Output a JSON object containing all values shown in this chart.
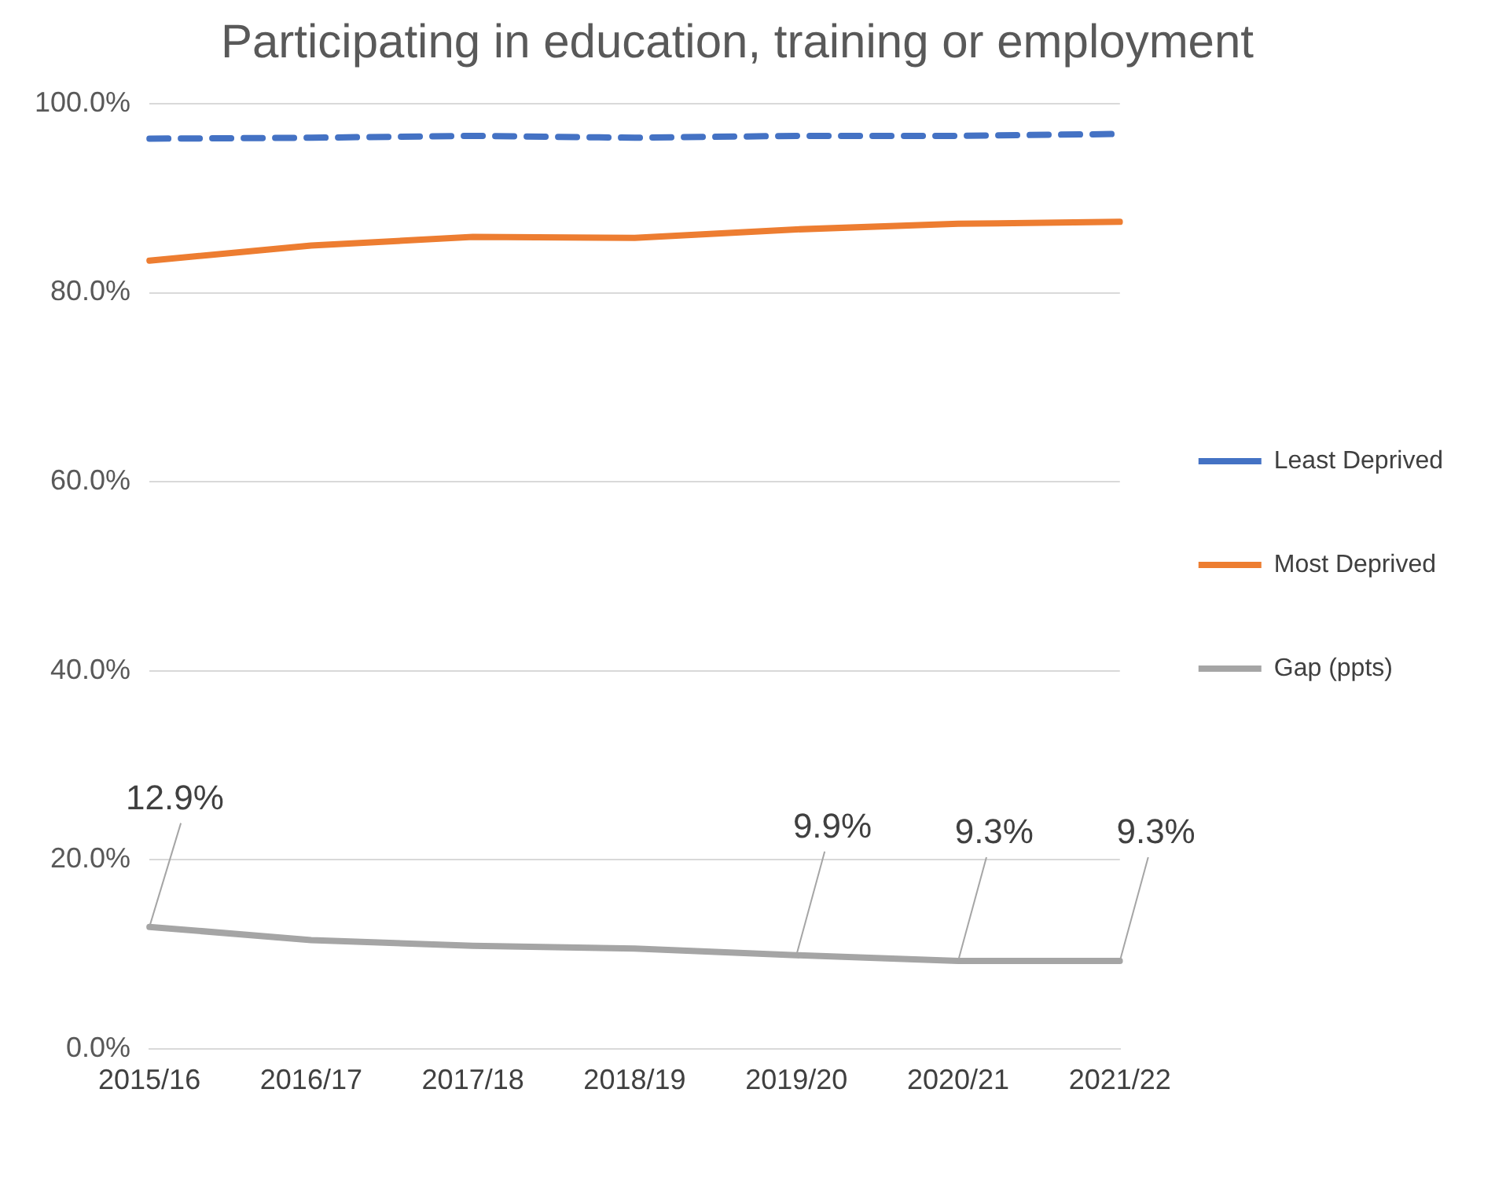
{
  "chart_data": {
    "type": "line",
    "title": "Participating in education, training or employment",
    "categories": [
      "2015/16",
      "2016/17",
      "2017/18",
      "2018/19",
      "2019/20",
      "2020/21",
      "2021/22"
    ],
    "series": [
      {
        "name": "Least Deprived",
        "color": "#4472c4",
        "line_style": "dashed",
        "values": [
          96.3,
          96.4,
          96.6,
          96.4,
          96.6,
          96.6,
          96.8
        ]
      },
      {
        "name": "Most Deprived",
        "color": "#ed7d31",
        "line_style": "solid",
        "values": [
          83.4,
          85.0,
          85.9,
          85.8,
          86.7,
          87.3,
          87.5
        ]
      },
      {
        "name": "Gap (ppts)",
        "color": "#a5a5a5",
        "line_style": "solid",
        "values": [
          12.9,
          11.5,
          10.9,
          10.6,
          9.9,
          9.3,
          9.3
        ],
        "value_labels": [
          "12.9%",
          null,
          null,
          null,
          "9.9%",
          "9.3%",
          "9.3%"
        ]
      }
    ],
    "ylim": [
      0,
      100
    ],
    "yticks": [
      {
        "value": 0,
        "label": "0.0%"
      },
      {
        "value": 20,
        "label": "20.0%"
      },
      {
        "value": 40,
        "label": "40.0%"
      },
      {
        "value": 60,
        "label": "60.0%"
      },
      {
        "value": 80,
        "label": "80.0%"
      },
      {
        "value": 100,
        "label": "100.0%"
      }
    ],
    "grid": "y",
    "legend": "right",
    "marker": "none"
  }
}
